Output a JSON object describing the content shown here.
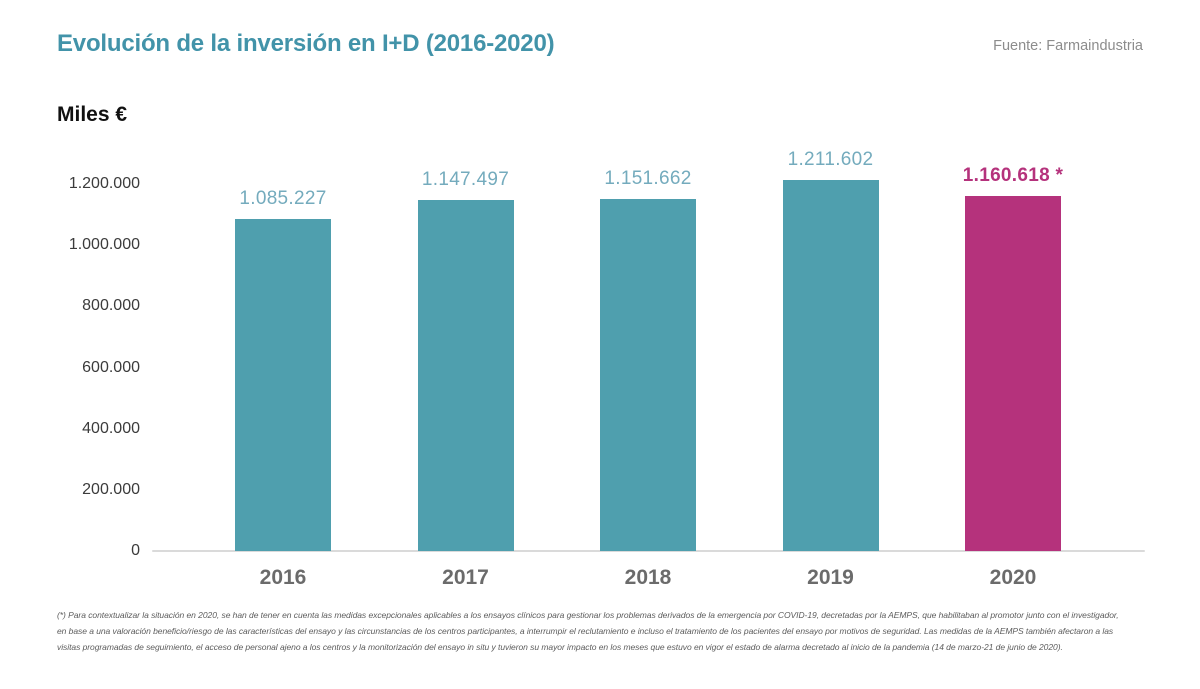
{
  "header": {
    "title": "Evolución de la inversión en I+D (2016-2020)",
    "source": "Fuente: Farmaindustria"
  },
  "axis": {
    "unit_label": "Miles €"
  },
  "chart_data": {
    "type": "bar",
    "title": "Evolución de la inversión en I+D (2016-2020)",
    "xlabel": "",
    "ylabel": "Miles €",
    "categories": [
      "2016",
      "2017",
      "2018",
      "2019",
      "2020"
    ],
    "values": [
      1085227,
      1147497,
      1151662,
      1211602,
      1160618
    ],
    "value_labels": [
      "1.085.227",
      "1.147.497",
      "1.151.662",
      "1.211.602",
      "1.160.618 *"
    ],
    "bar_colors": [
      "#4f9fae",
      "#4f9fae",
      "#4f9fae",
      "#4f9fae",
      "#b5327c"
    ],
    "value_label_colors": [
      "#74abbd",
      "#74abbd",
      "#74abbd",
      "#74abbd",
      "#b5327c"
    ],
    "value_label_bold": [
      false,
      false,
      false,
      false,
      true
    ],
    "ylim": [
      0,
      1200000
    ],
    "yticks": [
      0,
      200000,
      400000,
      600000,
      800000,
      1000000,
      1200000
    ],
    "ytick_labels": [
      "0",
      "200.000",
      "400.000",
      "600.000",
      "800.000",
      "1.000.000",
      "1.200.000"
    ],
    "grid": false,
    "legend": null
  },
  "footnote": {
    "lines": [
      "(*) Para contextualizar la situación en 2020, se han de tener en cuenta las medidas excepcionales aplicables a los ensayos clínicos para gestionar los problemas derivados de la emergencia por COVID-19, decretadas por la AEMPS, que habilitaban al promotor junto con el investigador,",
      "en base a una valoración beneficio/riesgo de las características del ensayo y las circunstancias de los centros participantes, a interrumpir el reclutamiento e incluso el tratamiento de los pacientes del ensayo por motivos de seguridad. Las medidas de la AEMPS también afectaron a las",
      "visitas programadas de seguimiento, el acceso de personal ajeno a los centros y la monitorización del ensayo in situ y tuvieron su mayor impacto en los meses que estuvo en vigor el estado de alarma decretado al inicio de la pandemia (14 de marzo-21 de junio de 2020)."
    ]
  },
  "colors": {
    "title_teal": "#4293a9",
    "bar_teal": "#4f9fae",
    "bar_magenta": "#b5327c",
    "value_label_teal": "#74abbd",
    "axis_line_gray": "#dadada"
  }
}
